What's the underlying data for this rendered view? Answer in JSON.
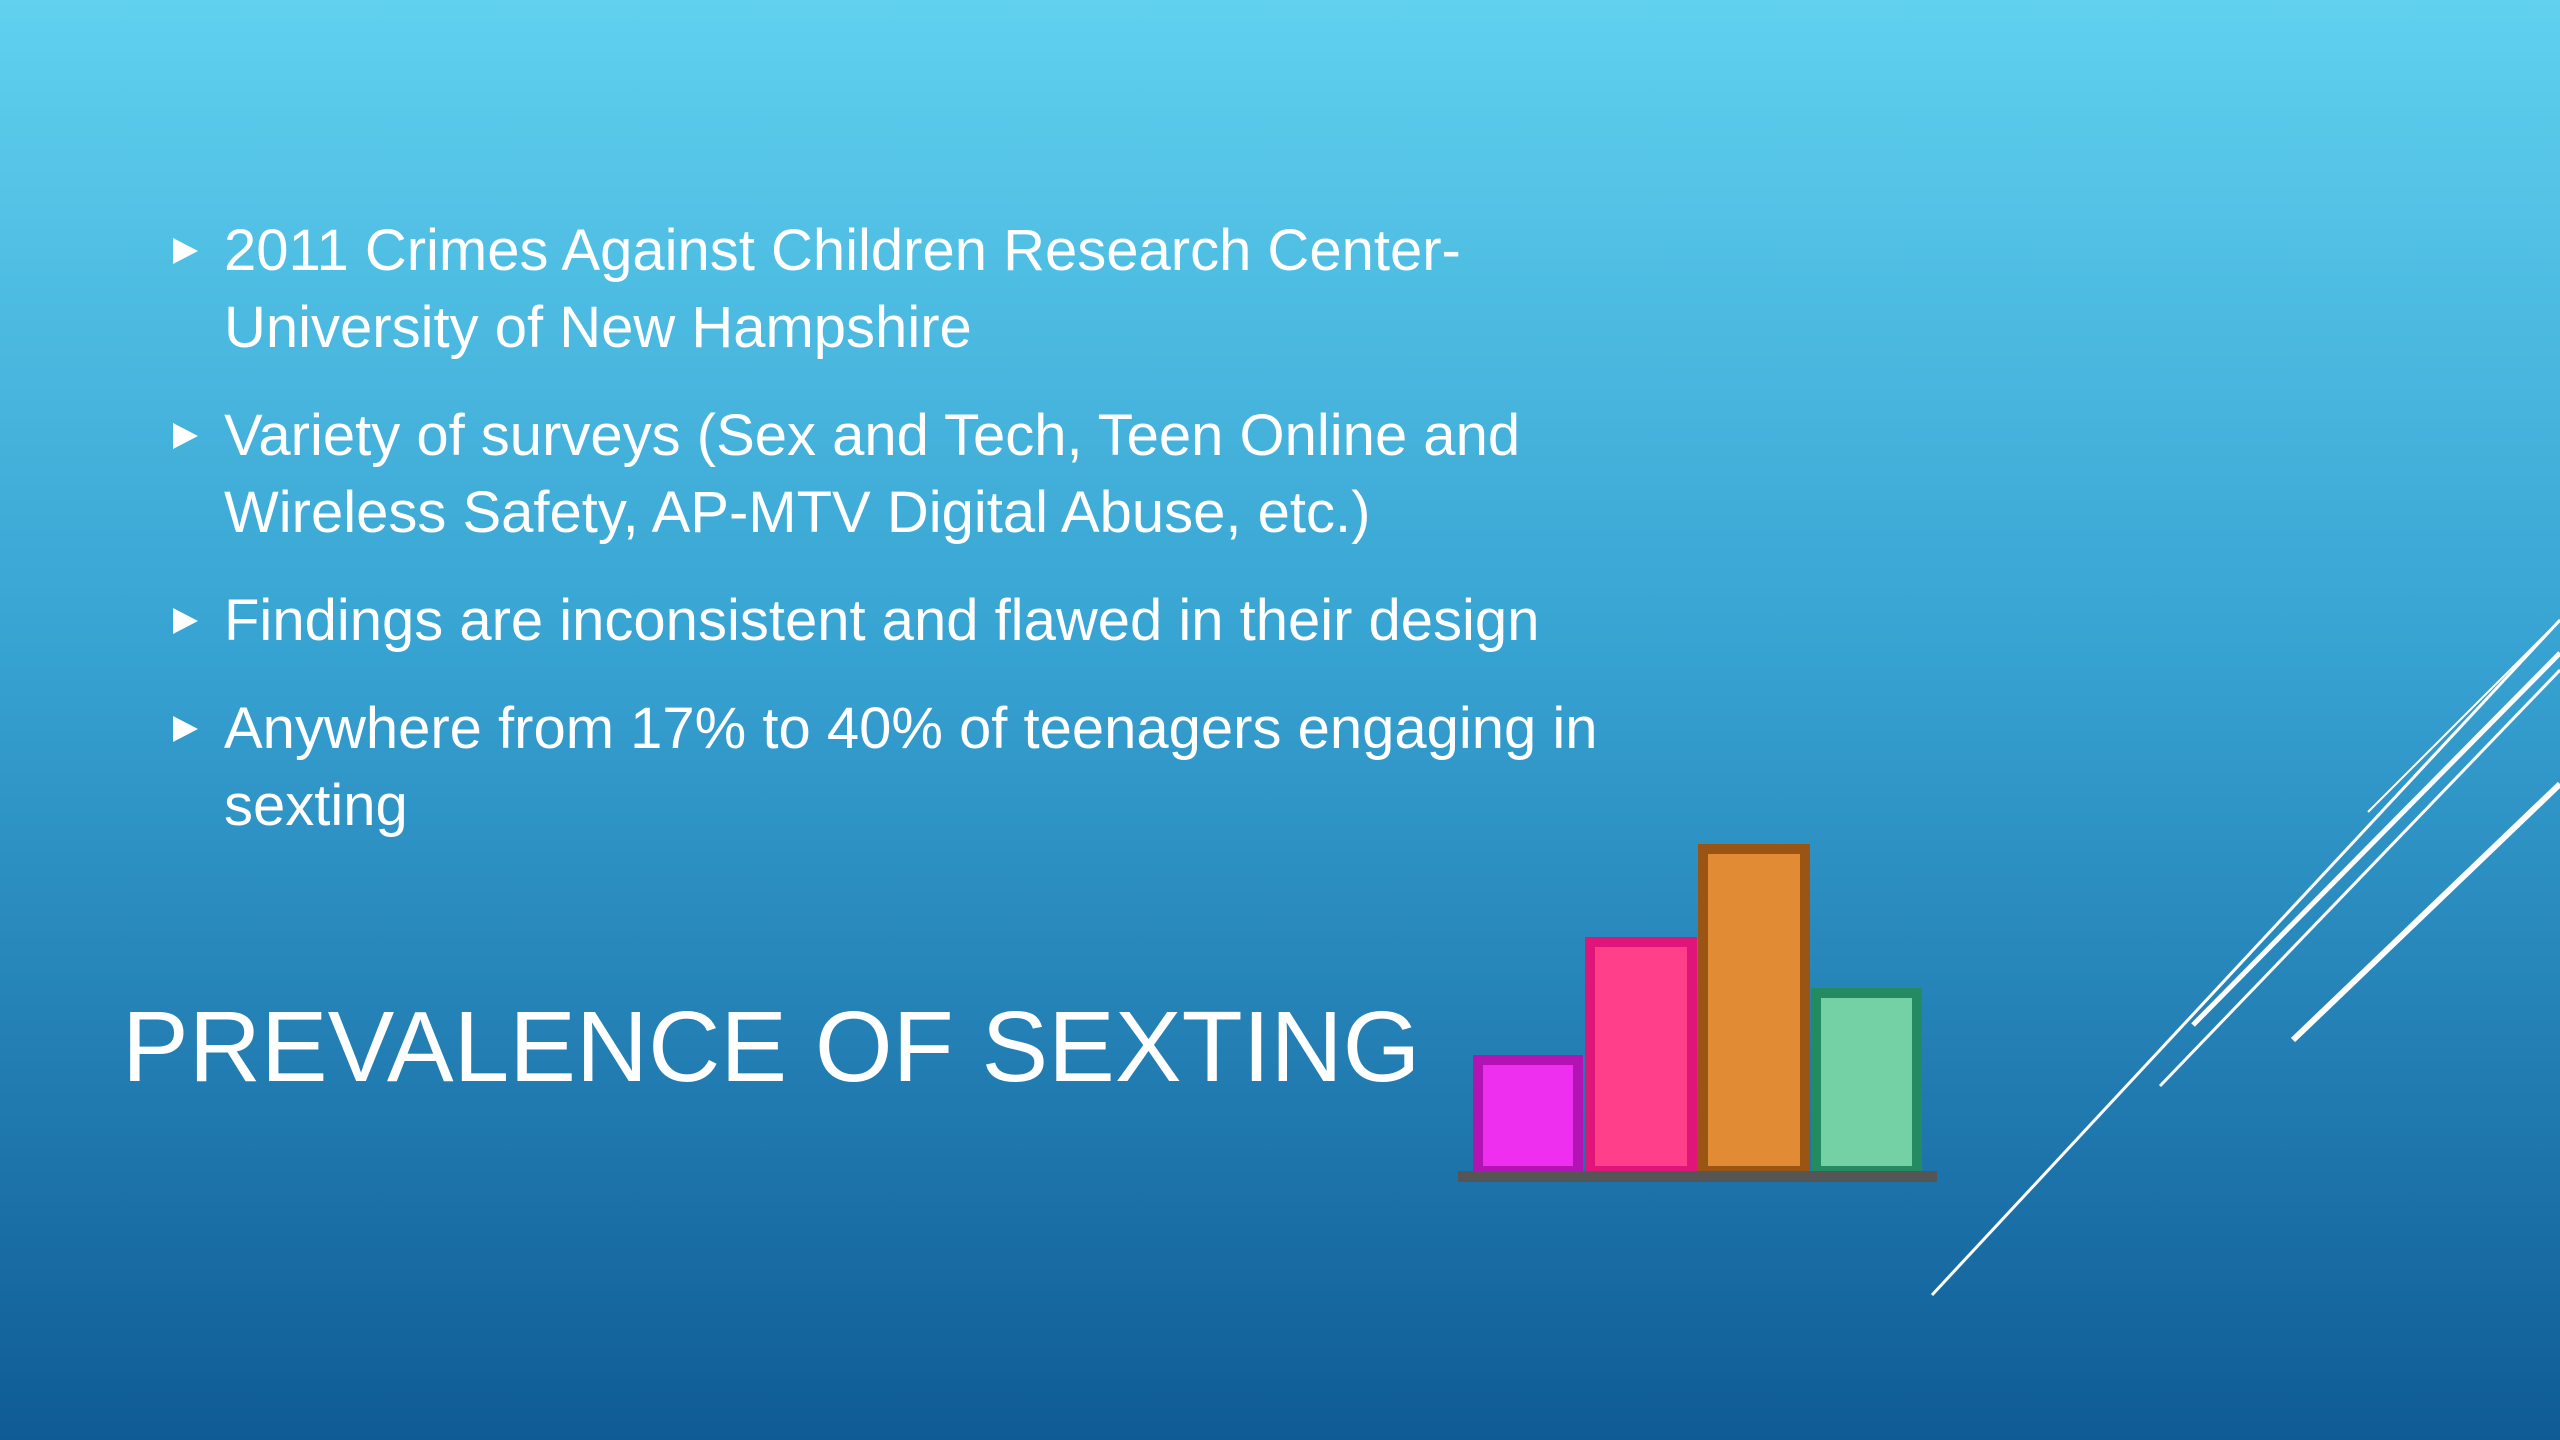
{
  "bullets": [
    {
      "lines": [
        "2011 Crimes Against Children Research Center-",
        "University of New Hampshire"
      ]
    },
    {
      "lines": [
        "Variety of surveys (Sex and Tech, Teen Online and",
        "Wireless Safety, AP-MTV Digital Abuse, etc.)"
      ]
    },
    {
      "lines": [
        "Findings are inconsistent and flawed in their design"
      ]
    },
    {
      "lines": [
        "Anywhere from 17% to 40% of teenagers engaging in",
        "sexting"
      ]
    }
  ],
  "title": "PREVALENCE OF SEXTING"
}
